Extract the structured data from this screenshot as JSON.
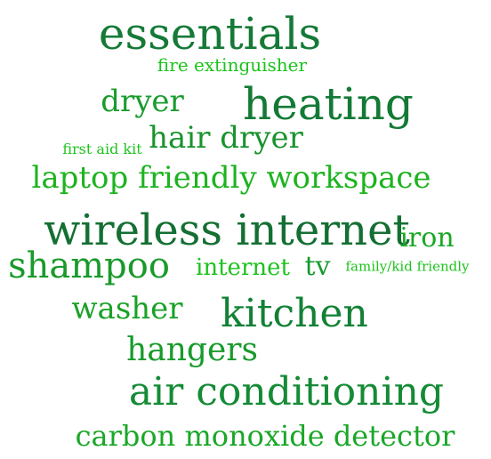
{
  "words": [
    {
      "text": "essentials",
      "color": "#157a37"
    },
    {
      "text": "fire extinguisher",
      "color": "#19c419"
    },
    {
      "text": "dryer",
      "color": "#189c2c"
    },
    {
      "text": "heating",
      "color": "#137a35"
    },
    {
      "text": "first aid kit",
      "color": "#1ec41e"
    },
    {
      "text": "hair dryer",
      "color": "#19932d"
    },
    {
      "text": "laptop friendly workspace",
      "color": "#1db31f"
    },
    {
      "text": "wireless internet",
      "color": "#146f33"
    },
    {
      "text": "iron",
      "color": "#18a824"
    },
    {
      "text": "shampoo",
      "color": "#1a9a2b"
    },
    {
      "text": "internet",
      "color": "#1dc21d"
    },
    {
      "text": "tv",
      "color": "#169a2e"
    },
    {
      "text": "family/kid friendly",
      "color": "#1dc21d"
    },
    {
      "text": "washer",
      "color": "#19a126"
    },
    {
      "text": "kitchen",
      "color": "#128135"
    },
    {
      "text": "hangers",
      "color": "#189a2c"
    },
    {
      "text": "air conditioning",
      "color": "#158b36"
    },
    {
      "text": "carbon monoxide detector",
      "color": "#1aa728"
    }
  ]
}
